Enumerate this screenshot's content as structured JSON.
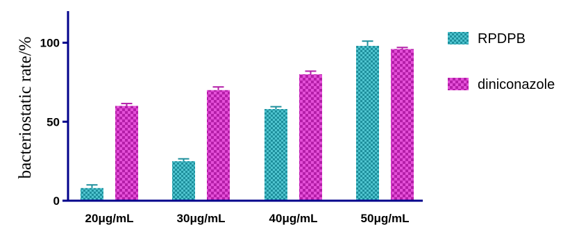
{
  "chart_data": {
    "type": "bar",
    "title": "",
    "xlabel": "",
    "ylabel": "bacteriostatic rate/%",
    "categories": [
      "20μg/mL",
      "30μg/mL",
      "40μg/mL",
      "50μg/mL"
    ],
    "ylim": [
      0,
      120
    ],
    "yticks": [
      0,
      50,
      100
    ],
    "legend_position": "right",
    "grid": false,
    "series": [
      {
        "name": "RPDPB",
        "values": [
          8,
          25,
          58,
          98
        ],
        "errors": [
          2,
          1.5,
          1.5,
          3
        ],
        "color": "#1e8f9c",
        "pattern_color": "#4fc4cf"
      },
      {
        "name": "diniconazole",
        "values": [
          60,
          70,
          80,
          96
        ],
        "errors": [
          1.5,
          2,
          2,
          1
        ],
        "color": "#b41ea8",
        "pattern_color": "#e44fd8"
      }
    ]
  }
}
